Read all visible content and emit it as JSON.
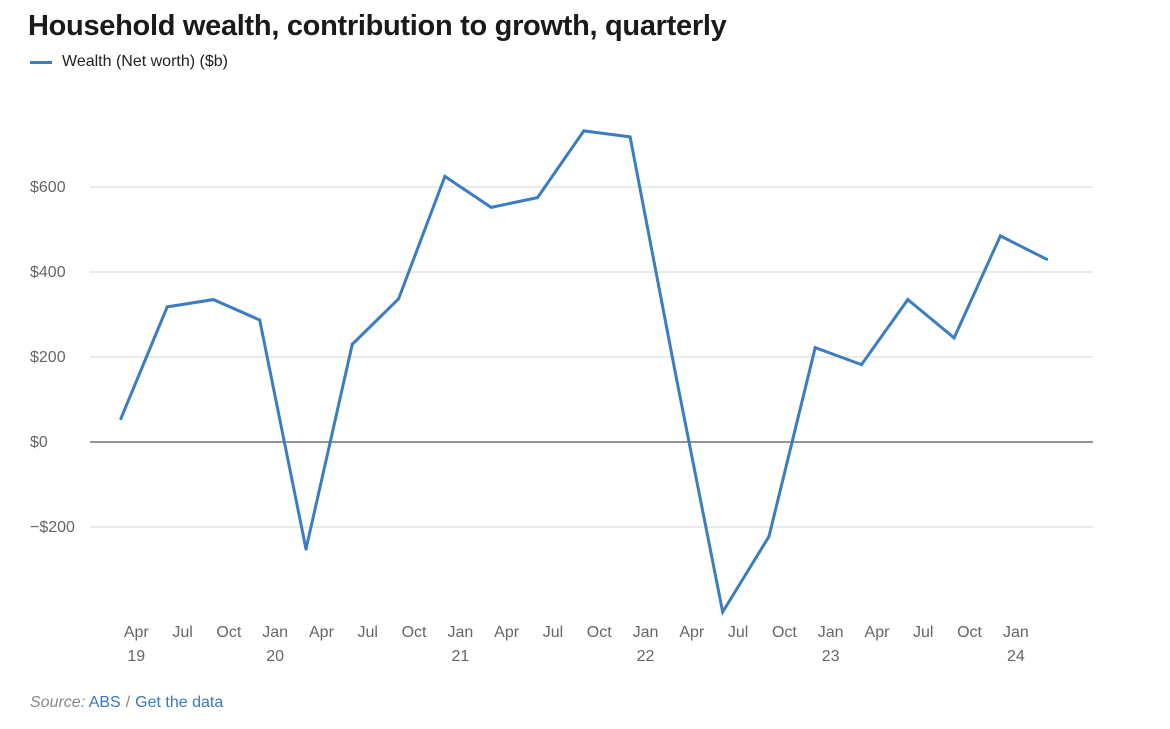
{
  "title": "Household wealth, contribution to growth, quarterly",
  "legend": {
    "label": "Wealth (Net worth) ($b)",
    "color": "#3a7dc0"
  },
  "source": {
    "label": "Source:",
    "link": "ABS",
    "separator": "/",
    "data_link": "Get the data"
  },
  "chart_data": {
    "type": "line",
    "title": "Household wealth, contribution to growth, quarterly",
    "series": [
      {
        "name": "Wealth (Net worth) ($b)",
        "color": "#3a7dc0",
        "points": [
          {
            "x": "2019-03",
            "y": 55
          },
          {
            "x": "2019-06",
            "y": 318
          },
          {
            "x": "2019-09",
            "y": 335
          },
          {
            "x": "2019-12",
            "y": 287
          },
          {
            "x": "2020-03",
            "y": -252
          },
          {
            "x": "2020-06",
            "y": 230
          },
          {
            "x": "2020-09",
            "y": 337
          },
          {
            "x": "2020-12",
            "y": 625
          },
          {
            "x": "2021-03",
            "y": 552
          },
          {
            "x": "2021-06",
            "y": 575
          },
          {
            "x": "2021-09",
            "y": 732
          },
          {
            "x": "2021-12",
            "y": 718
          },
          {
            "x": "2022-03",
            "y": 150
          },
          {
            "x": "2022-06",
            "y": -400
          },
          {
            "x": "2022-09",
            "y": -222
          },
          {
            "x": "2022-12",
            "y": 222
          },
          {
            "x": "2023-03",
            "y": 182
          },
          {
            "x": "2023-06",
            "y": 335
          },
          {
            "x": "2023-09",
            "y": 245
          },
          {
            "x": "2023-12",
            "y": 485
          },
          {
            "x": "2024-03",
            "y": 430
          }
        ]
      }
    ],
    "y_axis": {
      "ticks": [
        {
          "value": -200,
          "label": "−$200"
        },
        {
          "value": 0,
          "label": "$0"
        },
        {
          "value": 200,
          "label": "$200"
        },
        {
          "value": 400,
          "label": "$400"
        },
        {
          "value": 600,
          "label": "$600"
        }
      ],
      "range": [
        -400,
        780
      ]
    },
    "x_axis": {
      "range": [
        "2019-01",
        "2024-06"
      ],
      "ticks": [
        {
          "x": "2019-04",
          "label": "Apr",
          "year": "19"
        },
        {
          "x": "2019-07",
          "label": "Jul"
        },
        {
          "x": "2019-10",
          "label": "Oct"
        },
        {
          "x": "2020-01",
          "label": "Jan",
          "year": "20"
        },
        {
          "x": "2020-04",
          "label": "Apr"
        },
        {
          "x": "2020-07",
          "label": "Jul"
        },
        {
          "x": "2020-10",
          "label": "Oct"
        },
        {
          "x": "2021-01",
          "label": "Jan",
          "year": "21"
        },
        {
          "x": "2021-04",
          "label": "Apr"
        },
        {
          "x": "2021-07",
          "label": "Jul"
        },
        {
          "x": "2021-10",
          "label": "Oct"
        },
        {
          "x": "2022-01",
          "label": "Jan",
          "year": "22"
        },
        {
          "x": "2022-04",
          "label": "Apr"
        },
        {
          "x": "2022-07",
          "label": "Jul"
        },
        {
          "x": "2022-10",
          "label": "Oct"
        },
        {
          "x": "2023-01",
          "label": "Jan",
          "year": "23"
        },
        {
          "x": "2023-04",
          "label": "Apr"
        },
        {
          "x": "2023-07",
          "label": "Jul"
        },
        {
          "x": "2023-10",
          "label": "Oct"
        },
        {
          "x": "2024-01",
          "label": "Jan",
          "year": "24"
        }
      ]
    },
    "grid": true,
    "zero_line": true,
    "legend_position": "top-left"
  }
}
